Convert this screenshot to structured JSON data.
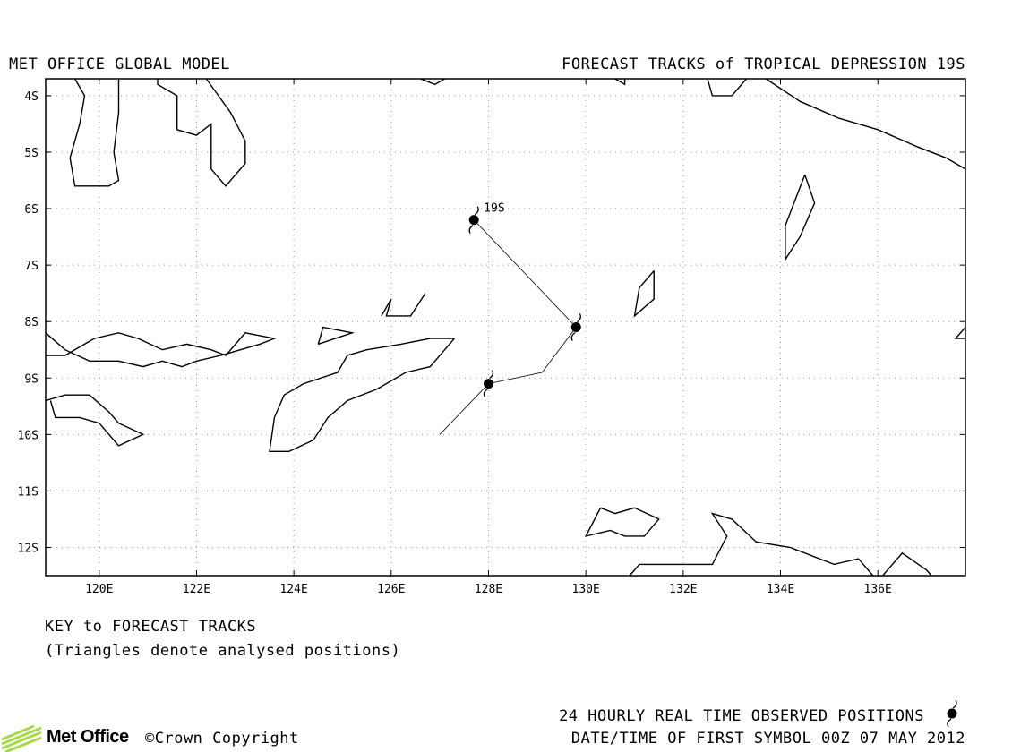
{
  "header": {
    "model_label": "MET OFFICE GLOBAL MODEL",
    "chart_title": "FORECAST TRACKS of TROPICAL DEPRESSION 19S"
  },
  "map": {
    "lon_range": [
      118.9,
      137.8
    ],
    "lat_range": [
      -3.7,
      -12.5
    ],
    "lon_ticks": [
      "120E",
      "122E",
      "124E",
      "126E",
      "128E",
      "130E",
      "132E",
      "134E",
      "136E"
    ],
    "lat_ticks": [
      "4S",
      "5S",
      "6S",
      "7S",
      "8S",
      "9S",
      "10S",
      "11S",
      "12S"
    ],
    "grid": "dotted",
    "storm_label": "19S",
    "observed_positions": [
      {
        "lon": 127.7,
        "lat": -6.2
      },
      {
        "lon": 129.8,
        "lat": -8.1
      },
      {
        "lon": 128.0,
        "lat": -9.1
      }
    ],
    "track": [
      {
        "lon": 127.7,
        "lat": -6.2
      },
      {
        "lon": 129.8,
        "lat": -8.1
      },
      {
        "lon": 129.1,
        "lat": -8.9
      },
      {
        "lon": 128.0,
        "lat": -9.1
      },
      {
        "lon": 127.0,
        "lat": -10.0
      }
    ],
    "coastlines": [
      [
        [
          119.5,
          -3.7
        ],
        [
          119.7,
          -4.0
        ],
        [
          119.6,
          -4.5
        ],
        [
          119.4,
          -5.1
        ],
        [
          119.5,
          -5.6
        ],
        [
          120.2,
          -5.6
        ],
        [
          120.4,
          -5.5
        ],
        [
          120.3,
          -5.0
        ],
        [
          120.4,
          -4.3
        ],
        [
          120.4,
          -3.7
        ]
      ],
      [
        [
          121.2,
          -3.7
        ],
        [
          121.2,
          -3.8
        ],
        [
          121.6,
          -4.0
        ],
        [
          121.6,
          -4.6
        ],
        [
          122.0,
          -4.7
        ],
        [
          122.3,
          -4.5
        ],
        [
          122.3,
          -5.3
        ],
        [
          122.6,
          -5.6
        ],
        [
          123.0,
          -5.2
        ],
        [
          123.0,
          -4.8
        ],
        [
          122.7,
          -4.3
        ],
        [
          122.2,
          -3.7
        ]
      ],
      [
        [
          126.6,
          -3.7
        ],
        [
          126.9,
          -3.8
        ],
        [
          127.1,
          -3.7
        ]
      ],
      [
        [
          130.6,
          -3.7
        ],
        [
          130.8,
          -3.8
        ],
        [
          130.8,
          -3.7
        ]
      ],
      [
        [
          132.5,
          -3.7
        ],
        [
          132.6,
          -4.0
        ],
        [
          133.0,
          -4.0
        ],
        [
          133.3,
          -3.7
        ]
      ],
      [
        [
          133.7,
          -3.7
        ],
        [
          134.4,
          -4.1
        ],
        [
          135.2,
          -4.4
        ],
        [
          136.0,
          -4.6
        ],
        [
          136.8,
          -4.9
        ],
        [
          137.4,
          -5.1
        ],
        [
          137.8,
          -5.3
        ]
      ],
      [
        [
          134.5,
          -5.4
        ],
        [
          134.7,
          -5.9
        ],
        [
          134.4,
          -6.5
        ],
        [
          134.1,
          -6.9
        ],
        [
          134.1,
          -6.3
        ],
        [
          134.5,
          -5.4
        ]
      ],
      [
        [
          131.4,
          -7.1
        ],
        [
          131.4,
          -7.6
        ],
        [
          131.0,
          -7.9
        ],
        [
          131.1,
          -7.4
        ],
        [
          131.4,
          -7.1
        ]
      ],
      [
        [
          137.8,
          -8.1
        ],
        [
          137.6,
          -8.3
        ],
        [
          137.8,
          -8.3
        ]
      ],
      [
        [
          118.9,
          -8.2
        ],
        [
          119.3,
          -8.5
        ],
        [
          119.8,
          -8.7
        ],
        [
          120.4,
          -8.7
        ],
        [
          120.9,
          -8.8
        ],
        [
          121.3,
          -8.7
        ],
        [
          121.7,
          -8.8
        ],
        [
          122.0,
          -8.7
        ],
        [
          122.5,
          -8.6
        ],
        [
          122.9,
          -8.5
        ],
        [
          123.3,
          -8.4
        ],
        [
          123.6,
          -8.3
        ],
        [
          123.0,
          -8.2
        ],
        [
          122.6,
          -8.6
        ],
        [
          122.3,
          -8.5
        ],
        [
          121.8,
          -8.4
        ],
        [
          121.3,
          -8.5
        ],
        [
          120.8,
          -8.3
        ],
        [
          120.4,
          -8.2
        ],
        [
          119.9,
          -8.3
        ],
        [
          119.3,
          -8.6
        ],
        [
          118.9,
          -8.6
        ]
      ],
      [
        [
          124.5,
          -8.4
        ],
        [
          124.6,
          -8.1
        ],
        [
          125.2,
          -8.2
        ],
        [
          124.5,
          -8.4
        ]
      ],
      [
        [
          125.8,
          -7.9
        ],
        [
          126.0,
          -7.6
        ],
        [
          125.9,
          -7.9
        ],
        [
          126.4,
          -7.9
        ],
        [
          126.7,
          -7.5
        ]
      ],
      [
        [
          127.3,
          -8.3
        ],
        [
          126.8,
          -8.3
        ],
        [
          126.2,
          -8.4
        ],
        [
          125.5,
          -8.5
        ],
        [
          125.1,
          -8.6
        ],
        [
          124.9,
          -8.9
        ],
        [
          124.2,
          -9.1
        ],
        [
          123.8,
          -9.3
        ],
        [
          123.6,
          -9.7
        ],
        [
          123.5,
          -10.3
        ],
        [
          123.9,
          -10.3
        ],
        [
          124.4,
          -10.1
        ],
        [
          124.7,
          -9.7
        ],
        [
          125.1,
          -9.4
        ],
        [
          125.7,
          -9.2
        ],
        [
          126.3,
          -8.9
        ],
        [
          126.8,
          -8.8
        ],
        [
          127.1,
          -8.5
        ],
        [
          127.3,
          -8.3
        ]
      ],
      [
        [
          118.9,
          -9.4
        ],
        [
          119.3,
          -9.3
        ],
        [
          119.8,
          -9.3
        ],
        [
          120.2,
          -9.6
        ],
        [
          120.4,
          -9.8
        ],
        [
          120.9,
          -10.0
        ],
        [
          120.4,
          -10.2
        ],
        [
          120.0,
          -9.8
        ],
        [
          119.6,
          -9.7
        ],
        [
          119.1,
          -9.7
        ],
        [
          119.0,
          -9.4
        ]
      ],
      [
        [
          130.3,
          -11.3
        ],
        [
          130.6,
          -11.4
        ],
        [
          131.0,
          -11.3
        ],
        [
          131.5,
          -11.5
        ],
        [
          131.2,
          -11.8
        ],
        [
          130.8,
          -11.8
        ],
        [
          130.5,
          -11.7
        ],
        [
          130.0,
          -11.8
        ],
        [
          130.3,
          -11.3
        ]
      ],
      [
        [
          130.9,
          -12.5
        ],
        [
          131.1,
          -12.3
        ],
        [
          132.6,
          -12.3
        ],
        [
          132.9,
          -11.8
        ],
        [
          132.6,
          -11.4
        ],
        [
          133.0,
          -11.5
        ],
        [
          133.5,
          -11.9
        ],
        [
          134.2,
          -12.0
        ],
        [
          135.1,
          -12.3
        ],
        [
          135.6,
          -12.2
        ],
        [
          135.9,
          -12.5
        ]
      ],
      [
        [
          136.1,
          -12.5
        ],
        [
          136.5,
          -12.1
        ],
        [
          137.0,
          -12.4
        ],
        [
          137.1,
          -12.5
        ]
      ]
    ]
  },
  "key": {
    "title": "KEY to FORECAST TRACKS",
    "note": "(Triangles denote analysed positions)"
  },
  "footer": {
    "observed_label": "24 HOURLY REAL TIME OBSERVED POSITIONS",
    "datetime_label": "DATE/TIME OF FIRST SYMBOL 00Z 07 MAY 2012",
    "logo_text": "Met Office",
    "copyright": "©Crown Copyright"
  }
}
